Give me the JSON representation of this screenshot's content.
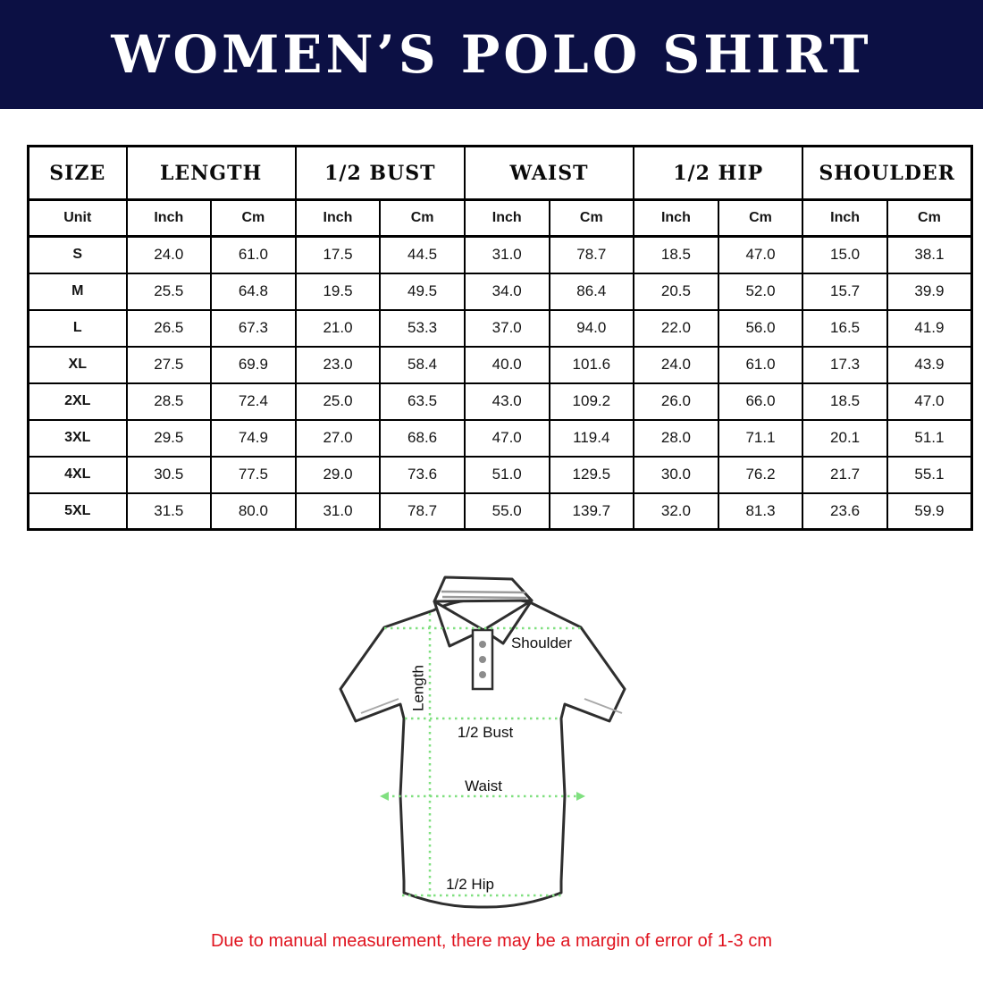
{
  "banner": {
    "title": "WOMEN’S POLO SHIRT",
    "bg_color": "#0c1044",
    "text_color": "#ffffff"
  },
  "table": {
    "size_header": "SIZE",
    "unit_label": "Unit",
    "groups": [
      "LENGTH",
      "1/2 BUST",
      "WAIST",
      "1/2 HIP",
      "SHOULDER"
    ],
    "units": {
      "inch": "Inch",
      "cm": "Cm"
    },
    "rows": [
      {
        "size": "S",
        "values": [
          "24.0",
          "61.0",
          "17.5",
          "44.5",
          "31.0",
          "78.7",
          "18.5",
          "47.0",
          "15.0",
          "38.1"
        ]
      },
      {
        "size": "M",
        "values": [
          "25.5",
          "64.8",
          "19.5",
          "49.5",
          "34.0",
          "86.4",
          "20.5",
          "52.0",
          "15.7",
          "39.9"
        ]
      },
      {
        "size": "L",
        "values": [
          "26.5",
          "67.3",
          "21.0",
          "53.3",
          "37.0",
          "94.0",
          "22.0",
          "56.0",
          "16.5",
          "41.9"
        ]
      },
      {
        "size": "XL",
        "values": [
          "27.5",
          "69.9",
          "23.0",
          "58.4",
          "40.0",
          "101.6",
          "24.0",
          "61.0",
          "17.3",
          "43.9"
        ]
      },
      {
        "size": "2XL",
        "values": [
          "28.5",
          "72.4",
          "25.0",
          "63.5",
          "43.0",
          "109.2",
          "26.0",
          "66.0",
          "18.5",
          "47.0"
        ]
      },
      {
        "size": "3XL",
        "values": [
          "29.5",
          "74.9",
          "27.0",
          "68.6",
          "47.0",
          "119.4",
          "28.0",
          "71.1",
          "20.1",
          "51.1"
        ]
      },
      {
        "size": "4XL",
        "values": [
          "30.5",
          "77.5",
          "29.0",
          "73.6",
          "51.0",
          "129.5",
          "30.0",
          "76.2",
          "21.7",
          "55.1"
        ]
      },
      {
        "size": "5XL",
        "values": [
          "31.5",
          "80.0",
          "31.0",
          "78.7",
          "55.0",
          "139.7",
          "32.0",
          "81.3",
          "23.6",
          "59.9"
        ]
      }
    ]
  },
  "diagram": {
    "labels": {
      "shoulder": "Shoulder",
      "length": "Length",
      "half_bust": "1/2 Bust",
      "waist": "Waist",
      "half_hip": "1/2 Hip"
    },
    "line_color": "#80e080",
    "outline_color": "#2e2e2e"
  },
  "footer": {
    "disclaimer": "Due to manual measurement, there may be a margin of error of 1-3 cm",
    "color": "#e0141f"
  }
}
